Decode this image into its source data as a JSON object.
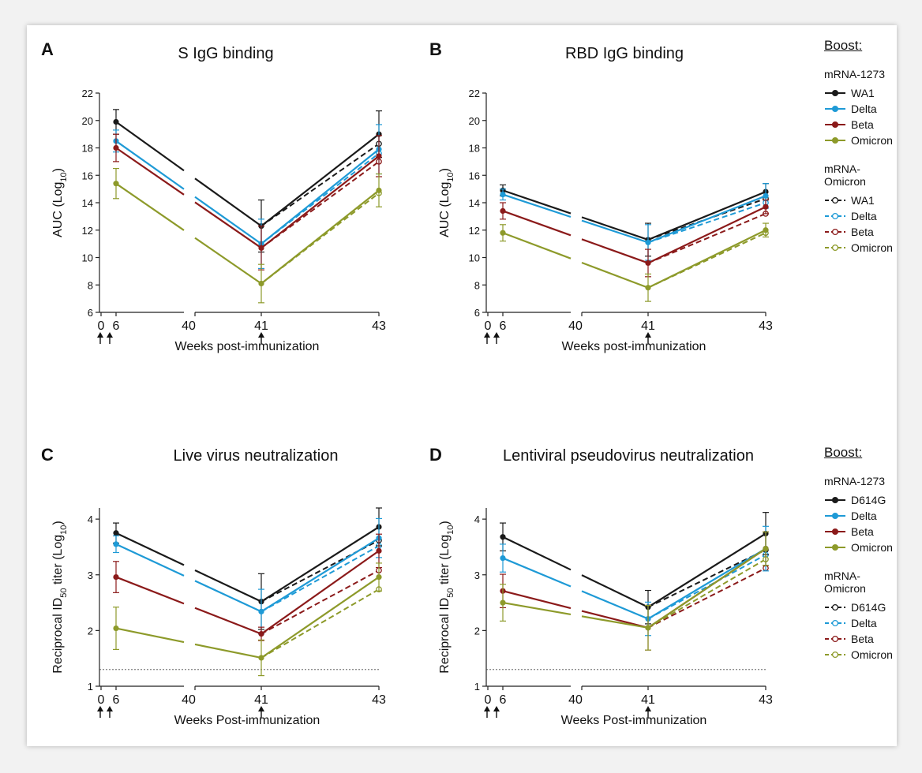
{
  "colors": {
    "black": "#1a1a1a",
    "blue": "#1e9ad6",
    "red": "#8b1a1a",
    "olive": "#8d9a2a"
  },
  "legends": [
    {
      "title": "Boost:",
      "groups": [
        {
          "name": "mRNA-1273",
          "dashed": false,
          "items": [
            {
              "label": "WA1",
              "color": "black"
            },
            {
              "label": "Delta",
              "color": "blue"
            },
            {
              "label": "Beta",
              "color": "red"
            },
            {
              "label": "Omicron",
              "color": "olive"
            }
          ]
        },
        {
          "name": "mRNA-Omicron",
          "dashed": true,
          "items": [
            {
              "label": "WA1",
              "color": "black"
            },
            {
              "label": "Delta",
              "color": "blue"
            },
            {
              "label": "Beta",
              "color": "red"
            },
            {
              "label": "Omicron",
              "color": "olive"
            }
          ]
        }
      ]
    },
    {
      "title": "Boost:",
      "groups": [
        {
          "name": "mRNA-1273",
          "dashed": false,
          "items": [
            {
              "label": "D614G",
              "color": "black"
            },
            {
              "label": "Delta",
              "color": "blue"
            },
            {
              "label": "Beta",
              "color": "red"
            },
            {
              "label": "Omicron",
              "color": "olive"
            }
          ]
        },
        {
          "name": "mRNA-Omicron",
          "dashed": true,
          "items": [
            {
              "label": "D614G",
              "color": "black"
            },
            {
              "label": "Delta",
              "color": "blue"
            },
            {
              "label": "Beta",
              "color": "red"
            },
            {
              "label": "Omicron",
              "color": "olive"
            }
          ]
        }
      ]
    }
  ],
  "chart_data": [
    {
      "panel": "A",
      "type": "line",
      "title": "S IgG binding",
      "xlabel": "Weeks post-immunization",
      "ylabel_parts": [
        "AUC (Log",
        "10",
        ")"
      ],
      "ylim": [
        6,
        22
      ],
      "yticks": [
        "6",
        "8",
        "10",
        "12",
        "14",
        "16",
        "18",
        "20",
        "22"
      ],
      "xticks": [
        "0",
        "6",
        "40",
        "41",
        "43"
      ],
      "x": [
        6,
        41,
        43
      ],
      "arrows_at": [
        0,
        4,
        41
      ],
      "threshold": null,
      "solid_series": [
        {
          "name": "WA1",
          "color": "black",
          "values": [
            19.9,
            12.3,
            19.0
          ],
          "err": [
            0.9,
            1.9,
            1.7
          ]
        },
        {
          "name": "Delta",
          "color": "blue",
          "values": [
            18.5,
            11.0,
            17.9
          ],
          "err": [
            0.8,
            1.8,
            1.8
          ]
        },
        {
          "name": "Beta",
          "color": "red",
          "values": [
            18.0,
            10.7,
            17.4
          ],
          "err": [
            1.0,
            1.6,
            1.5
          ]
        },
        {
          "name": "Omicron",
          "color": "olive",
          "values": [
            15.4,
            8.1,
            14.9
          ],
          "err": [
            1.1,
            1.4,
            1.2
          ]
        }
      ],
      "dashed_series": [
        {
          "name": "WA1",
          "color": "black",
          "values": [
            12.3,
            18.3
          ]
        },
        {
          "name": "Delta",
          "color": "blue",
          "values": [
            11.0,
            17.6
          ]
        },
        {
          "name": "Beta",
          "color": "red",
          "values": [
            10.7,
            17.0
          ]
        },
        {
          "name": "Omicron",
          "color": "olive",
          "values": [
            8.1,
            14.7
          ]
        }
      ]
    },
    {
      "panel": "B",
      "type": "line",
      "title": "RBD IgG binding",
      "xlabel": "Weeks post-immunization",
      "ylabel_parts": [
        "AUC (Log",
        "10",
        ")"
      ],
      "ylim": [
        6,
        22
      ],
      "yticks": [
        "6",
        "8",
        "10",
        "12",
        "14",
        "16",
        "18",
        "20",
        "22"
      ],
      "xticks": [
        "0",
        "6",
        "40",
        "41",
        "43"
      ],
      "x": [
        6,
        41,
        43
      ],
      "arrows_at": [
        0,
        4,
        41
      ],
      "threshold": null,
      "solid_series": [
        {
          "name": "WA1",
          "color": "black",
          "values": [
            14.9,
            11.3,
            14.8
          ],
          "err": [
            0.4,
            1.2,
            0.6
          ]
        },
        {
          "name": "Delta",
          "color": "blue",
          "values": [
            14.6,
            11.1,
            14.5
          ],
          "err": [
            0.4,
            1.3,
            0.9
          ]
        },
        {
          "name": "Beta",
          "color": "red",
          "values": [
            13.4,
            9.6,
            13.7
          ],
          "err": [
            0.6,
            1.0,
            0.5
          ]
        },
        {
          "name": "Omicron",
          "color": "olive",
          "values": [
            11.8,
            7.8,
            12.0
          ],
          "err": [
            0.6,
            1.0,
            0.5
          ]
        }
      ],
      "dashed_series": [
        {
          "name": "WA1",
          "color": "black",
          "values": [
            11.3,
            14.3
          ]
        },
        {
          "name": "Delta",
          "color": "blue",
          "values": [
            11.1,
            14.0
          ]
        },
        {
          "name": "Beta",
          "color": "red",
          "values": [
            9.6,
            13.2
          ]
        },
        {
          "name": "Omicron",
          "color": "olive",
          "values": [
            7.8,
            11.8
          ]
        }
      ]
    },
    {
      "panel": "C",
      "type": "line",
      "title": "Live virus neutralization",
      "xlabel": "Weeks Post-immunization",
      "ylabel_parts": [
        "Reciprocal ID",
        "50",
        " titer (Log",
        "10",
        ")"
      ],
      "ylim": [
        1,
        4.2
      ],
      "yticks": [
        "1",
        "2",
        "3",
        "4"
      ],
      "xticks": [
        "0",
        "6",
        "40",
        "41",
        "43"
      ],
      "x": [
        6,
        41,
        43
      ],
      "arrows_at": [
        0,
        4,
        41
      ],
      "threshold": 1.3,
      "solid_series": [
        {
          "name": "D614G",
          "color": "black",
          "values": [
            3.75,
            2.52,
            3.86
          ],
          "err": [
            0.18,
            0.5,
            0.34
          ]
        },
        {
          "name": "Delta",
          "color": "blue",
          "values": [
            3.55,
            2.34,
            3.66
          ],
          "err": [
            0.15,
            0.4,
            0.35
          ]
        },
        {
          "name": "Beta",
          "color": "red",
          "values": [
            2.96,
            1.94,
            3.43
          ],
          "err": [
            0.28,
            0.12,
            0.3
          ]
        },
        {
          "name": "Omicron",
          "color": "olive",
          "values": [
            2.04,
            1.51,
            2.96
          ],
          "err": [
            0.38,
            0.32,
            0.25
          ]
        }
      ],
      "dashed_series": [
        {
          "name": "D614G",
          "color": "black",
          "values": [
            2.52,
            3.62
          ]
        },
        {
          "name": "Delta",
          "color": "blue",
          "values": [
            2.34,
            3.52
          ]
        },
        {
          "name": "Beta",
          "color": "red",
          "values": [
            1.94,
            3.08
          ]
        },
        {
          "name": "Omicron",
          "color": "olive",
          "values": [
            1.51,
            2.74
          ]
        }
      ]
    },
    {
      "panel": "D",
      "type": "line",
      "title": "Lentiviral pseudovirus neutralization",
      "xlabel": "Weeks Post-immunization",
      "ylabel_parts": [
        "Reciprocal ID",
        "50",
        " titer (Log",
        "10",
        ")"
      ],
      "ylim": [
        1,
        4.2
      ],
      "yticks": [
        "1",
        "2",
        "3",
        "4"
      ],
      "xticks": [
        "0",
        "6",
        "40",
        "41",
        "43"
      ],
      "x": [
        6,
        41,
        43
      ],
      "arrows_at": [
        0,
        4,
        41
      ],
      "threshold": 1.3,
      "solid_series": [
        {
          "name": "D614G",
          "color": "black",
          "values": [
            3.68,
            2.42,
            3.74
          ],
          "err": [
            0.25,
            0.3,
            0.38
          ]
        },
        {
          "name": "Delta",
          "color": "blue",
          "values": [
            3.3,
            2.21,
            3.47
          ],
          "err": [
            0.25,
            0.3,
            0.4
          ]
        },
        {
          "name": "Beta",
          "color": "red",
          "values": [
            2.71,
            2.05,
            3.47
          ],
          "err": [
            0.3,
            0.4,
            0.3
          ]
        },
        {
          "name": "Omicron",
          "color": "olive",
          "values": [
            2.5,
            2.05,
            3.47
          ],
          "err": [
            0.33,
            0.4,
            0.3
          ]
        }
      ],
      "dashed_series": [
        {
          "name": "D614G",
          "color": "black",
          "values": [
            2.42,
            3.45
          ]
        },
        {
          "name": "Delta",
          "color": "blue",
          "values": [
            2.21,
            3.36
          ]
        },
        {
          "name": "Beta",
          "color": "red",
          "values": [
            2.05,
            3.12
          ]
        },
        {
          "name": "Omicron",
          "color": "olive",
          "values": [
            2.05,
            3.28
          ]
        }
      ]
    }
  ]
}
